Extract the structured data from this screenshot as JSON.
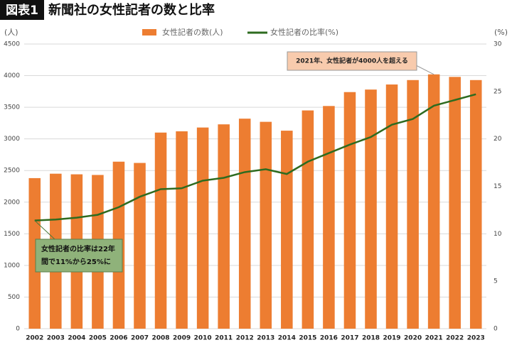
{
  "badge": "図表1",
  "chart_data": {
    "type": "bar-line",
    "title": "新聞社の女性記者の数と比率",
    "y_unit": "(人)",
    "y2_unit": "(%)",
    "categories": [
      "2002",
      "2003",
      "2004",
      "2005",
      "2006",
      "2007",
      "2008",
      "2009",
      "2010",
      "2011",
      "2012",
      "2013",
      "2014",
      "2015",
      "2016",
      "2017",
      "2018",
      "2019",
      "2020",
      "2021",
      "2022",
      "2023"
    ],
    "series": [
      {
        "name": "女性記者の数(人)",
        "type": "bar",
        "color": "#ed7d31",
        "axis": "y",
        "values": [
          2380,
          2450,
          2440,
          2430,
          2640,
          2620,
          3100,
          3120,
          3180,
          3230,
          3320,
          3270,
          3130,
          3450,
          3520,
          3740,
          3780,
          3860,
          3930,
          4020,
          3980,
          3930
        ]
      },
      {
        "name": "女性記者の比率(%)",
        "type": "line",
        "color": "#2e6b1f",
        "axis": "y2",
        "values": [
          11.4,
          11.5,
          11.7,
          12.0,
          12.8,
          13.9,
          14.7,
          14.8,
          15.6,
          15.9,
          16.5,
          16.8,
          16.3,
          17.6,
          18.5,
          19.4,
          20.2,
          21.5,
          22.1,
          23.5,
          24.1,
          24.7
        ]
      }
    ],
    "ylim": [
      0,
      4500
    ],
    "yticks": [
      0,
      500,
      1000,
      1500,
      2000,
      2500,
      3000,
      3500,
      4000,
      4500
    ],
    "y2lim": [
      0,
      30
    ],
    "y2ticks": [
      0,
      5,
      10,
      15,
      20,
      25,
      30
    ],
    "grid": true,
    "annotations": [
      {
        "lines": [
          "2021年、女性記者が4000人を超える"
        ],
        "color": "#f8cbad"
      },
      {
        "lines": [
          "女性記者の比率は22年",
          "間で11%から25%に"
        ],
        "color": "#8fb27a"
      }
    ]
  }
}
